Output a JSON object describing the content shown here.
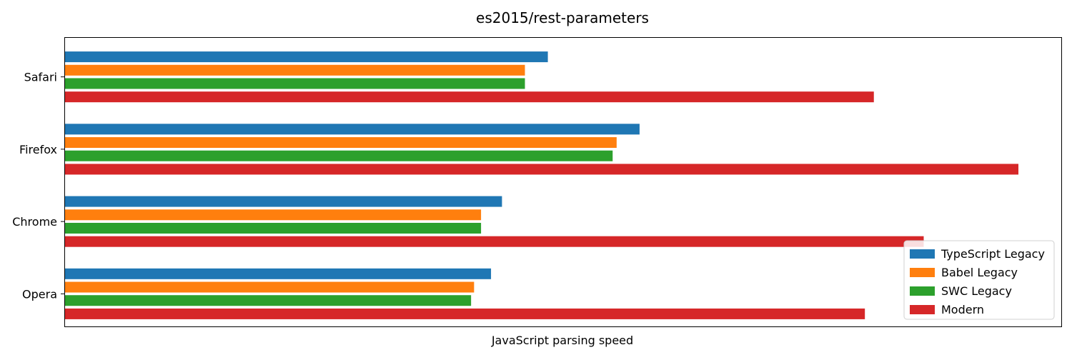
{
  "chart_data": {
    "type": "bar",
    "orientation": "horizontal",
    "title": "es2015/rest-parameters",
    "xlabel": "JavaScript parsing speed",
    "ylabel": "",
    "categories": [
      "Safari",
      "Firefox",
      "Chrome",
      "Opera"
    ],
    "xlim": [
      0,
      1.0
    ],
    "x_ticks_visible": false,
    "grid": false,
    "legend_position": "bottom-right",
    "series": [
      {
        "name": "TypeScript Legacy",
        "color": "#1f77b4",
        "values": [
          0.485,
          0.577,
          0.439,
          0.428
        ]
      },
      {
        "name": "Babel Legacy",
        "color": "#ff7f0e",
        "values": [
          0.462,
          0.554,
          0.418,
          0.411
        ]
      },
      {
        "name": "SWC Legacy",
        "color": "#2ca02c",
        "values": [
          0.462,
          0.55,
          0.418,
          0.408
        ]
      },
      {
        "name": "Modern",
        "color": "#d62728",
        "values": [
          0.812,
          0.957,
          0.862,
          0.803
        ]
      }
    ]
  }
}
